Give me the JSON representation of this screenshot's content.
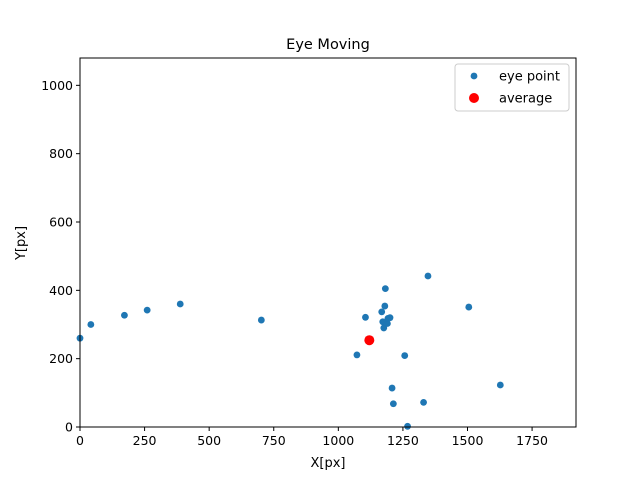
{
  "chart_data": {
    "type": "scatter",
    "title": "Eye Moving",
    "xlabel": "X[px]",
    "ylabel": "Y[px]",
    "xlim": [
      0,
      1920
    ],
    "ylim": [
      0,
      1080
    ],
    "xticks": [
      0,
      250,
      500,
      750,
      1000,
      1250,
      1500,
      1750
    ],
    "yticks": [
      0,
      200,
      400,
      600,
      800,
      1000
    ],
    "grid": false,
    "legend_position": "top-right",
    "series": [
      {
        "name": "eye point",
        "color": "#1f77b4",
        "points": [
          [
            0,
            260
          ],
          [
            42,
            300
          ],
          [
            172,
            327
          ],
          [
            260,
            342
          ],
          [
            388,
            360
          ],
          [
            702,
            313
          ],
          [
            1072,
            211
          ],
          [
            1105,
            321
          ],
          [
            1168,
            337
          ],
          [
            1172,
            308
          ],
          [
            1176,
            290
          ],
          [
            1180,
            354
          ],
          [
            1182,
            405
          ],
          [
            1190,
            303
          ],
          [
            1192,
            318
          ],
          [
            1200,
            320
          ],
          [
            1208,
            114
          ],
          [
            1213,
            68
          ],
          [
            1257,
            209
          ],
          [
            1268,
            2
          ],
          [
            1330,
            72
          ],
          [
            1347,
            442
          ],
          [
            1505,
            351
          ],
          [
            1627,
            123
          ]
        ]
      },
      {
        "name": "average",
        "color": "#ff0000",
        "points": [
          [
            1120,
            254
          ]
        ]
      }
    ]
  }
}
